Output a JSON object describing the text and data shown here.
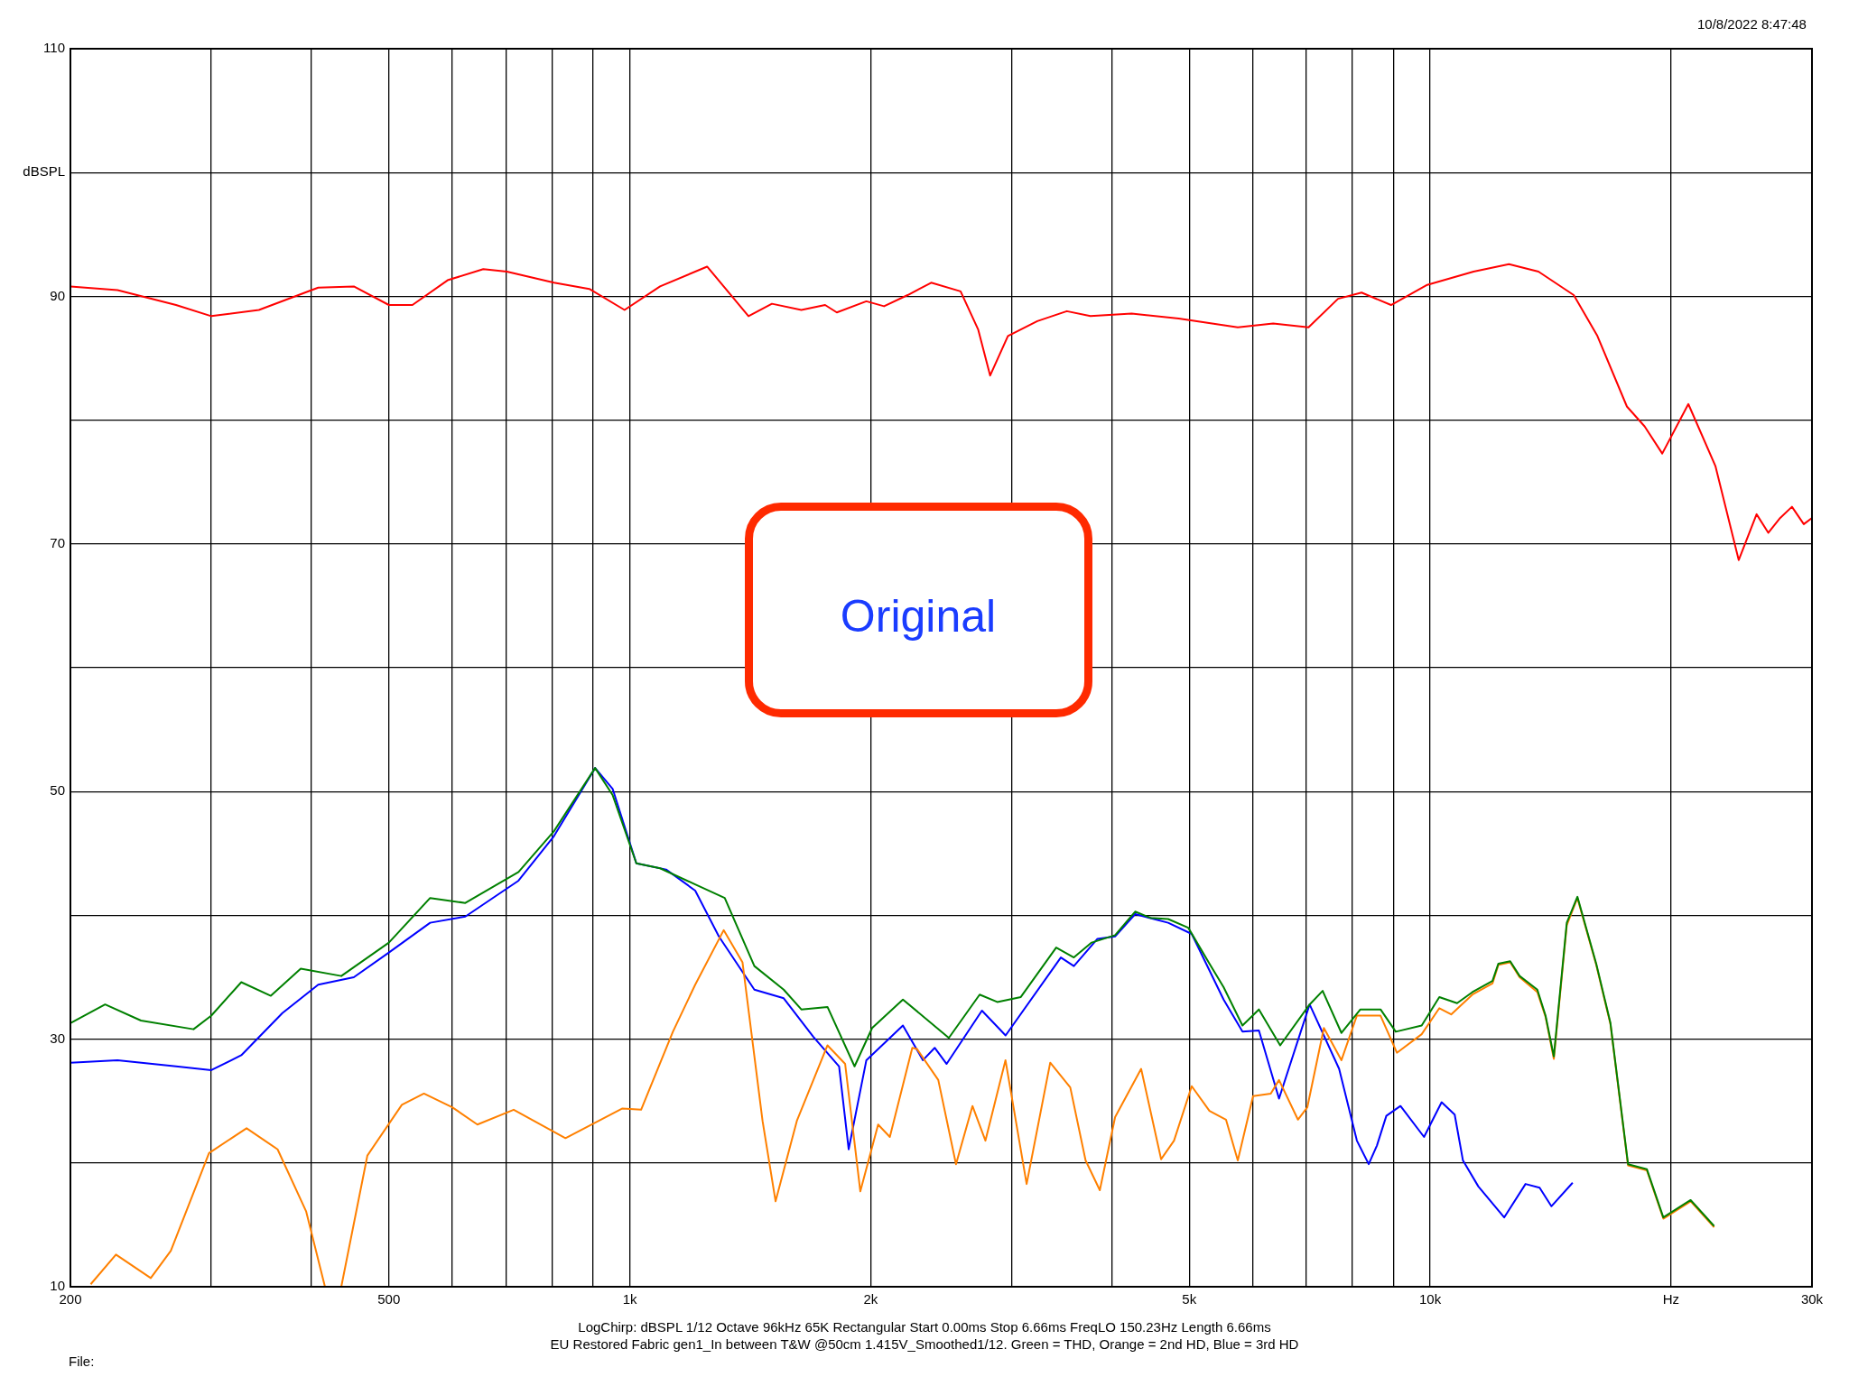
{
  "chart_data": {
    "type": "line",
    "log": "x",
    "grid": true,
    "xlim": [
      200,
      30000
    ],
    "ylim": [
      10,
      110
    ],
    "xticks": [
      200,
      {
        "value": 300,
        "label": null
      },
      {
        "value": 400,
        "label": null
      },
      500,
      {
        "value": 600,
        "label": null
      },
      {
        "value": 700,
        "label": null
      },
      {
        "value": 800,
        "label": null
      },
      {
        "value": 900,
        "label": null
      },
      {
        "value": 1000,
        "label": "1k"
      },
      {
        "value": 2000,
        "label": "2k"
      },
      {
        "value": 3000,
        "label": null
      },
      {
        "value": 4000,
        "label": null
      },
      {
        "value": 5000,
        "label": "5k"
      },
      {
        "value": 6000,
        "label": null
      },
      {
        "value": 7000,
        "label": null
      },
      {
        "value": 8000,
        "label": null
      },
      {
        "value": 9000,
        "label": null
      },
      {
        "value": 10000,
        "label": "10k"
      },
      {
        "value": 20000,
        "label": "Hz"
      },
      {
        "value": 30000,
        "label": "30k"
      }
    ],
    "yticks": [
      10,
      {
        "value": 20,
        "label": null
      },
      30,
      {
        "value": 40,
        "label": null
      },
      50,
      {
        "value": 60,
        "label": null
      },
      70,
      {
        "value": 80,
        "label": null
      },
      90,
      {
        "value": 100,
        "label": "dBSPL"
      },
      110
    ],
    "annotations": [
      "10/8/2022 8:47:48",
      "LogChirp:  dBSPL   1/12 Octave   96kHz   65K   Rectangular   Start 0.00ms   Stop 6.66ms   FreqLO 150.23Hz   Length 6.66ms",
      "EU Restored Fabric gen1_In between T&W @50cm 1.415V_Smoothed1/12. Green = THD, Orange = 2nd HD, Blue = 3rd HD",
      "File:",
      "Original"
    ],
    "series": [
      {
        "color": "#ff0000",
        "x": [
          200,
          229,
          271,
          300,
          344,
          408,
          452,
          500,
          535,
          592,
          656,
          702,
          804,
          890,
          985,
          1091,
          1249,
          1407,
          1505,
          1638,
          1754,
          1814,
          1975,
          2078,
          2224,
          2380,
          2590,
          2725,
          2820,
          2968,
          3230,
          3516,
          3763,
          4237,
          4852,
          5750,
          6366,
          7048,
          7672,
          8210,
          8936,
          9894,
          11330,
          12546,
          13658,
          15116,
          16180,
          17614,
          18534,
          19500,
          21020,
          22720,
          24300,
          25580,
          26460,
          27380,
          28320,
          29300,
          30000
        ],
        "values": [
          90.8,
          90.5,
          89.3,
          88.4,
          88.9,
          90.7,
          90.8,
          89.3,
          89.3,
          91.3,
          92.2,
          92.0,
          91.1,
          90.6,
          88.9,
          90.8,
          92.4,
          88.4,
          89.4,
          88.9,
          89.3,
          88.7,
          89.6,
          89.2,
          90.1,
          91.1,
          90.4,
          87.3,
          83.6,
          86.8,
          88.0,
          88.8,
          88.4,
          88.6,
          88.2,
          87.5,
          87.8,
          87.5,
          89.8,
          90.3,
          89.3,
          90.9,
          92.0,
          92.6,
          92.0,
          90.1,
          86.8,
          81.1,
          79.5,
          77.3,
          81.3,
          76.3,
          68.7,
          72.4,
          70.9,
          72.1,
          73.0,
          71.6,
          72.1
        ]
      },
      {
        "color": "#008000",
        "x": [
          200,
          221,
          245,
          285,
          300,
          327,
          356,
          388,
          436,
          500,
          563,
          623,
          726,
          804,
          905,
          952,
          1019,
          1091,
          1207,
          1314,
          1431,
          1557,
          1638,
          1766,
          1909,
          2008,
          2194,
          2504,
          2736,
          2878,
          3080,
          3410,
          3588,
          3776,
          4040,
          4280,
          4472,
          4706,
          4986,
          5300,
          5520,
          5828,
          6110,
          6496,
          7070,
          7340,
          7748,
          8182,
          8670,
          9058,
          9760,
          10268,
          10806,
          11294,
          11964,
          12170,
          12590,
          12936,
          13612,
          13938,
          14274,
          14816,
          15276,
          16126,
          16800,
          17672,
          18654,
          19560,
          21160,
          22640
        ],
        "values": [
          31.3,
          32.8,
          31.5,
          30.8,
          31.9,
          34.6,
          33.5,
          35.7,
          35.1,
          37.8,
          41.4,
          41.0,
          43.5,
          46.8,
          51.9,
          49.7,
          44.2,
          43.8,
          42.5,
          41.4,
          35.9,
          34.0,
          32.4,
          32.6,
          27.8,
          30.9,
          33.2,
          30.1,
          33.6,
          33.0,
          33.4,
          37.4,
          36.6,
          37.8,
          38.4,
          40.3,
          39.8,
          39.7,
          39.0,
          36.1,
          34.2,
          31.1,
          32.4,
          29.5,
          32.8,
          33.9,
          30.5,
          32.4,
          32.4,
          30.6,
          31.1,
          33.4,
          32.9,
          33.8,
          34.7,
          36.1,
          36.3,
          35.1,
          34.0,
          31.9,
          28.6,
          39.4,
          41.5,
          36.1,
          31.3,
          19.9,
          19.5,
          15.6,
          17.0,
          14.9
        ]
      },
      {
        "color": "#ff8000",
        "x": [
          212,
          228,
          252,
          267,
          298,
          332,
          363,
          394,
          416,
          436,
          470,
          519,
          553,
          600,
          645,
          716,
          831,
          979,
          1033,
          1132,
          1207,
          1310,
          1383,
          1465,
          1521,
          1617,
          1766,
          1858,
          1941,
          2043,
          2113,
          2254,
          2285,
          2429,
          2556,
          2680,
          2782,
          2947,
          3132,
          3352,
          3551,
          3711,
          3866,
          4040,
          4354,
          4612,
          4786,
          5036,
          5300,
          5558,
          5750,
          6008,
          6322,
          6474,
          6836,
          7024,
          7366,
          7748,
          8100,
          8670,
          9088,
          9760,
          10268,
          10624,
          11294,
          11964,
          12170,
          12590,
          12936,
          13612,
          13938,
          14274,
          14816,
          15276,
          16126,
          16800,
          17672,
          18654,
          19560,
          21160,
          22640
        ],
        "values": [
          10.2,
          12.6,
          10.7,
          12.9,
          20.8,
          22.8,
          21.1,
          16.1,
          10,
          10,
          20.6,
          24.7,
          25.6,
          24.5,
          23.1,
          24.3,
          22.0,
          24.4,
          24.3,
          30.6,
          34.4,
          38.8,
          36.2,
          23.4,
          16.9,
          23.4,
          29.5,
          28.0,
          17.7,
          23.1,
          22.1,
          29.3,
          29.2,
          26.7,
          19.9,
          24.6,
          21.8,
          28.3,
          18.3,
          28.1,
          26.1,
          20.2,
          17.8,
          23.7,
          27.6,
          20.3,
          21.8,
          26.2,
          24.2,
          23.5,
          20.2,
          25.4,
          25.6,
          26.7,
          23.5,
          24.5,
          30.9,
          28.3,
          31.9,
          31.9,
          28.9,
          30.4,
          32.5,
          32.0,
          33.6,
          34.5,
          36.0,
          36.2,
          35.0,
          33.8,
          31.8,
          28.4,
          39.2,
          41.4,
          36.0,
          31.2,
          19.8,
          19.4,
          15.5,
          16.9,
          14.8
        ]
      },
      {
        "color": "#0000ff",
        "x": [
          200,
          229,
          271,
          300,
          327,
          368,
          408,
          452,
          500,
          563,
          623,
          726,
          804,
          905,
          952,
          1019,
          1110,
          1207,
          1292,
          1431,
          1557,
          1695,
          1826,
          1877,
          1975,
          2194,
          2324,
          2404,
          2488,
          2754,
          2948,
          3456,
          3588,
          3840,
          4040,
          4280,
          4706,
          5036,
          5520,
          5828,
          6110,
          6474,
          7070,
          7696,
          8100,
          8380,
          8580,
          8816,
          9182,
          9826,
          10336,
          10732,
          10990,
          11488,
          12374,
          13158,
          13702,
          14174,
          15068
        ],
        "values": [
          28.1,
          28.3,
          27.8,
          27.5,
          28.7,
          32.1,
          34.4,
          35.0,
          37.0,
          39.4,
          39.9,
          42.8,
          46.4,
          51.9,
          50.2,
          44.2,
          43.7,
          42.0,
          38.3,
          34.0,
          33.3,
          30.2,
          27.8,
          21.1,
          28.3,
          31.1,
          28.3,
          29.3,
          28.0,
          32.3,
          30.3,
          36.6,
          35.9,
          38.1,
          38.3,
          40.1,
          39.4,
          38.5,
          33.2,
          30.6,
          30.7,
          25.2,
          32.8,
          27.6,
          21.8,
          19.9,
          21.4,
          23.8,
          24.6,
          22.1,
          24.9,
          23.9,
          20.2,
          18.1,
          15.6,
          18.3,
          18.0,
          16.5,
          18.4
        ]
      }
    ]
  }
}
